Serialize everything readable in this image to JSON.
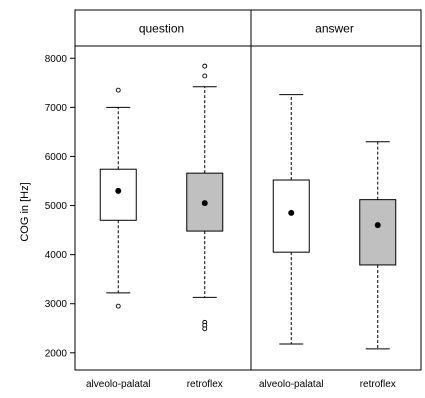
{
  "chart_data": {
    "type": "boxplot",
    "ylabel": "COG in [Hz]",
    "ylim": [
      1650,
      8250
    ],
    "yticks": [
      2000,
      3000,
      4000,
      5000,
      6000,
      7000,
      8000
    ],
    "categories": [
      "alveolo-palatal",
      "retroflex"
    ],
    "panels": [
      {
        "name": "question",
        "boxes": [
          {
            "category": "alveolo-palatal",
            "whisker_low": 3220,
            "q1": 4700,
            "median": 5300,
            "q3": 5740,
            "whisker_high": 7000,
            "mean": 5300,
            "outliers": [
              7350,
              2950
            ],
            "fill": "#ffffff"
          },
          {
            "category": "retroflex",
            "whisker_low": 3130,
            "q1": 4480,
            "median": 5050,
            "q3": 5660,
            "whisker_high": 7420,
            "mean": 5050,
            "outliers": [
              7840,
              7640,
              2620,
              2560,
              2490
            ],
            "fill": "#c0c0c0"
          }
        ]
      },
      {
        "name": "answer",
        "boxes": [
          {
            "category": "alveolo-palatal",
            "whisker_low": 2180,
            "q1": 4050,
            "median": 4850,
            "q3": 5520,
            "whisker_high": 7260,
            "mean": 4850,
            "outliers": [],
            "fill": "#ffffff"
          },
          {
            "category": "retroflex",
            "whisker_low": 2080,
            "q1": 3790,
            "median": 4600,
            "q3": 5120,
            "whisker_high": 6300,
            "mean": 4600,
            "outliers": [],
            "fill": "#c0c0c0"
          }
        ]
      }
    ]
  }
}
